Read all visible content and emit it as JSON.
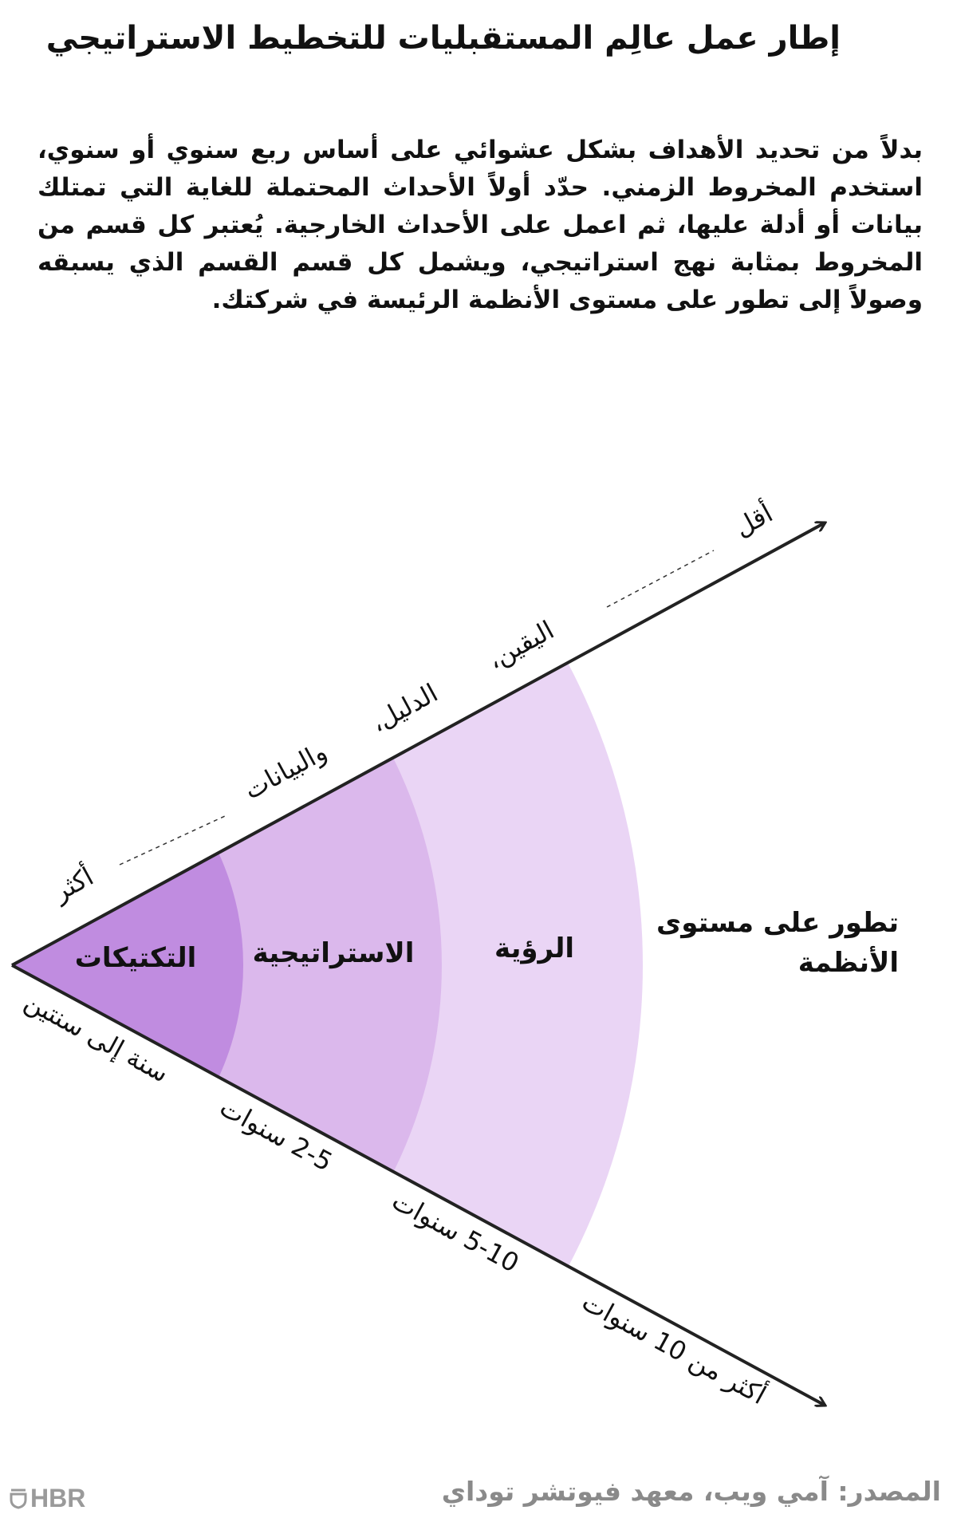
{
  "title": "إطار عمل عالِم المستقبليات للتخطيط الاستراتيجي",
  "description": "بدلاً من تحديد الأهداف بشكل عشوائي على أساس ربع سنوي أو سنوي، استخدم المخروط الزمني. حدّد أولاً الأحداث المحتملة للغاية التي تمتلك بيانات أو أدلة عليها، ثم اعمل على الأحداث الخارجية. يُعتبر كل قسم من المخروط بمثابة نهج استراتيجي، ويشمل كل قسم القسم الذي يسبقه وصولاً إلى تطور على مستوى الأنظمة الرئيسة في شركتك.",
  "diagram": {
    "upper_axis": {
      "less": "أقل",
      "certainty": "اليقين،",
      "evidence": "الدليل،",
      "data": "والبيانات",
      "more": "أكثر"
    },
    "lower_axis": [
      "سنة إلى سنتين",
      "2-5 سنوات",
      "5-10 سنوات",
      "أكثر من 10 سنوات"
    ],
    "sections": [
      {
        "label": "التكتيكات",
        "color": "#c08ce0"
      },
      {
        "label": "الاستراتيجية",
        "color": "#dbb8ec"
      },
      {
        "label": "الرؤية",
        "color": "#ead5f5"
      }
    ],
    "systems_label_line1": "تطور على مستوى",
    "systems_label_line2": "الأنظمة"
  },
  "footer": {
    "source": "المصدر: آمي ويب، معهد فيوتشر توداي",
    "logo": "HBR"
  }
}
